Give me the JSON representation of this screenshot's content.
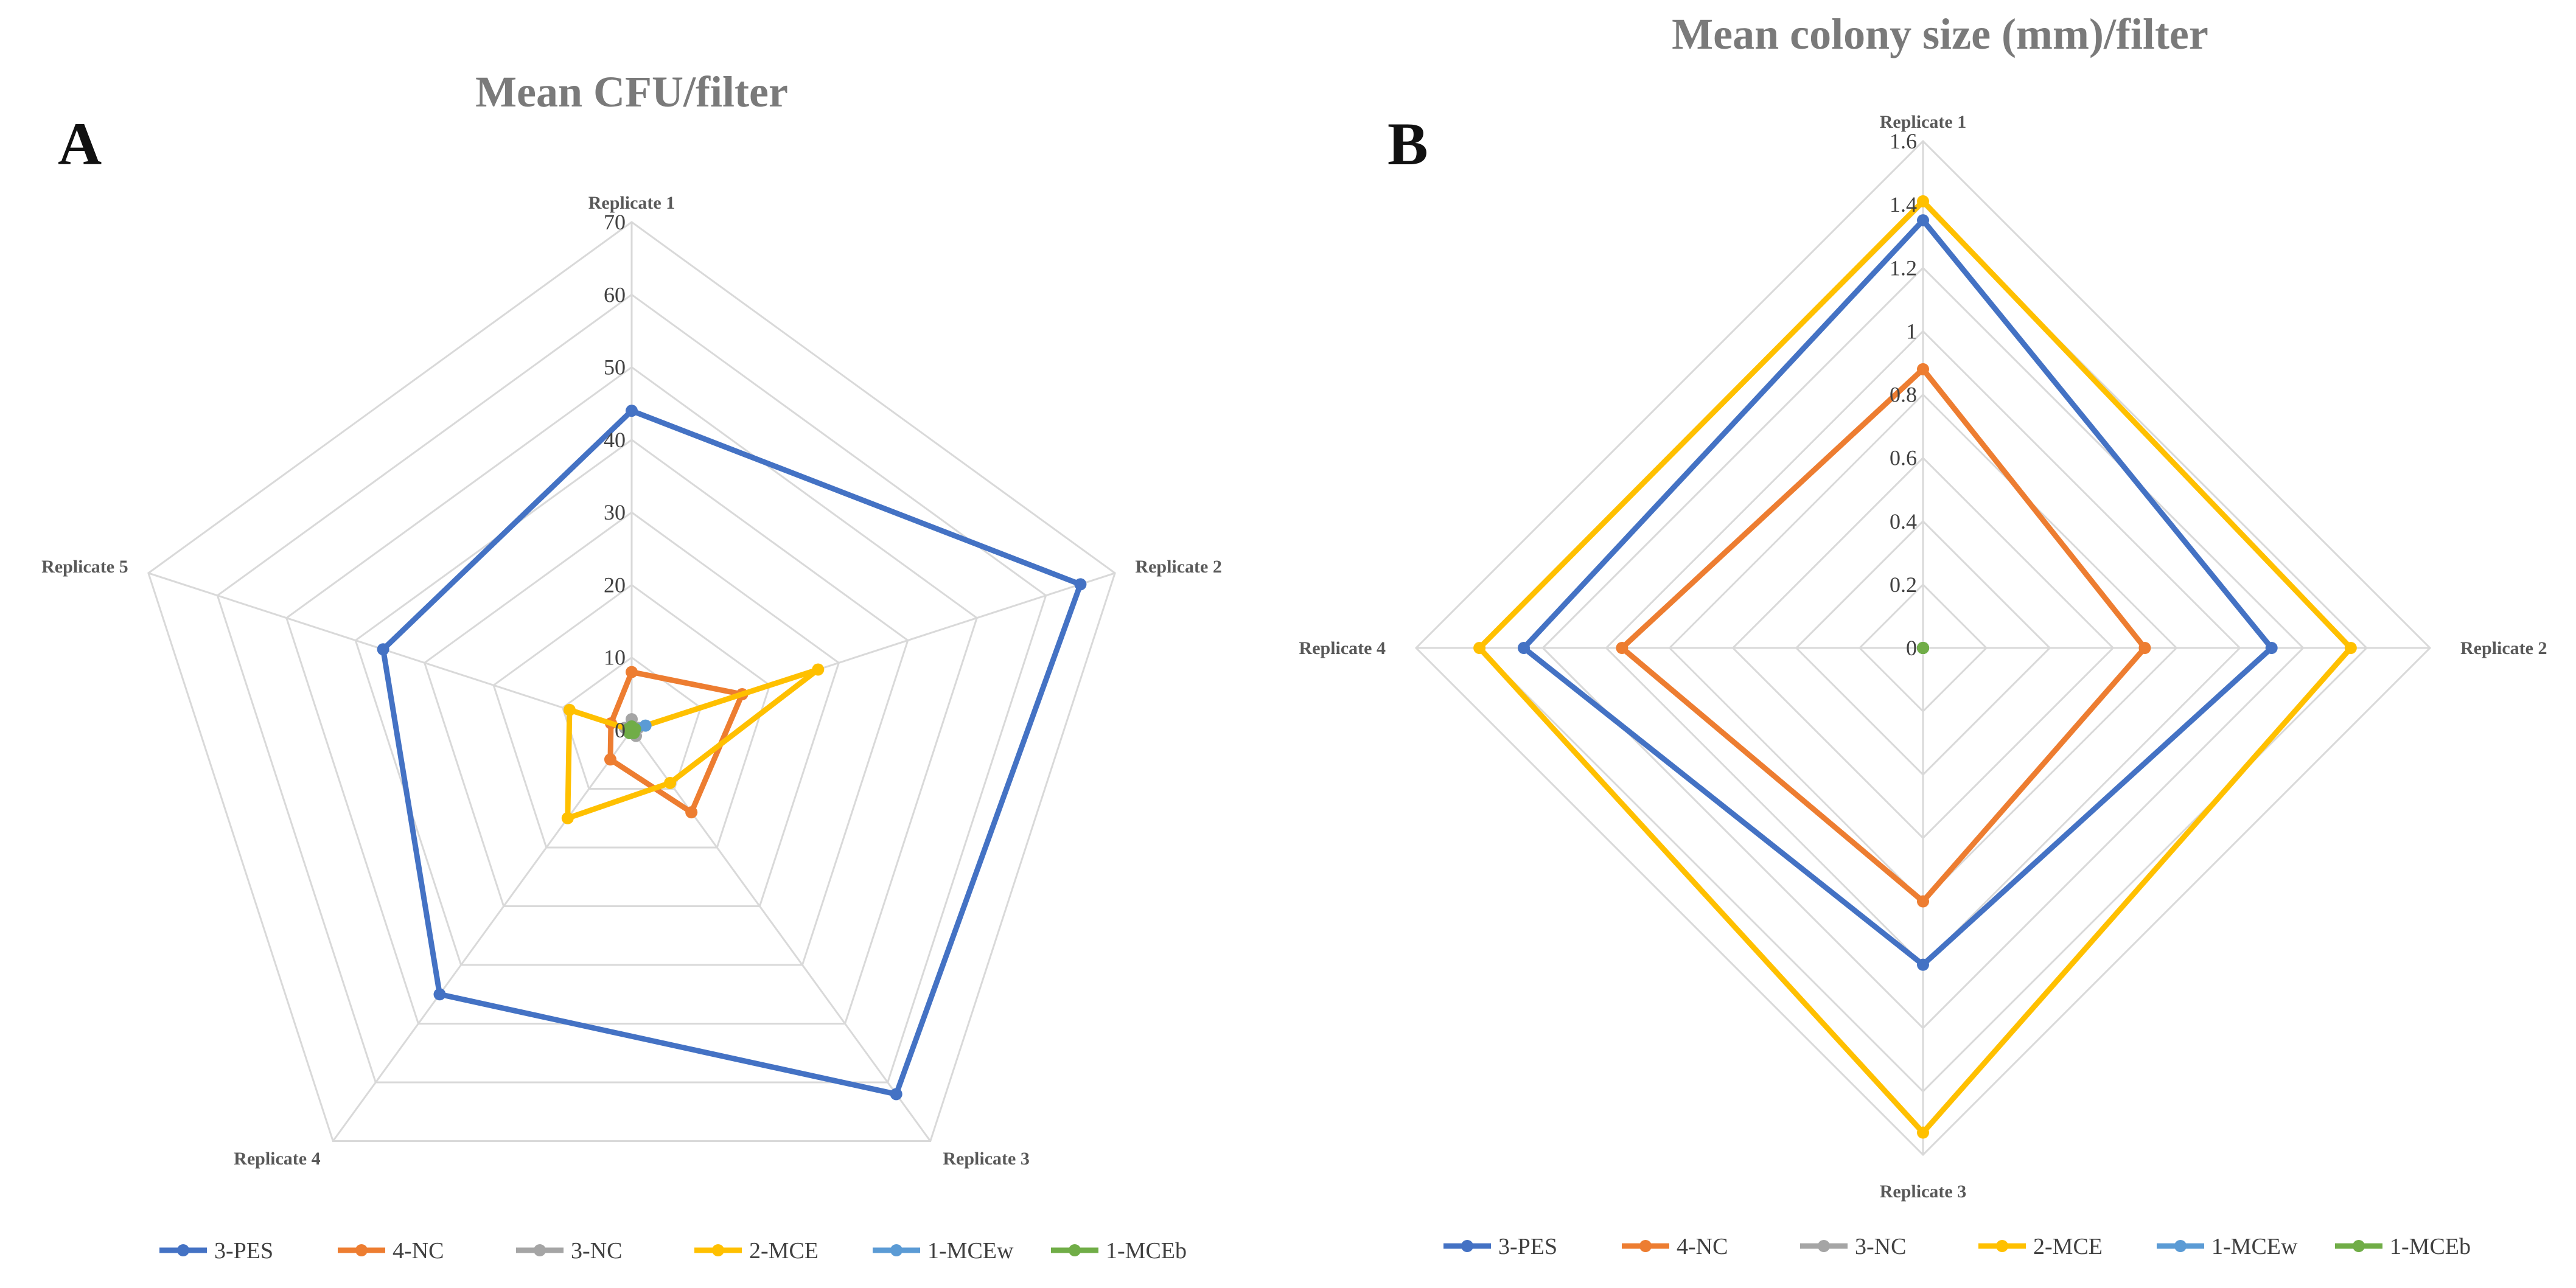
{
  "chart_data": [
    {
      "type": "radar",
      "panel": "A",
      "title": "Mean CFU/filter",
      "axes": [
        "Replicate 1",
        "Replicate 2",
        "Replicate 3",
        "Replicate 4",
        "Replicate 5"
      ],
      "rlim": [
        0,
        70
      ],
      "ticks": [
        0,
        10,
        20,
        30,
        40,
        50,
        60,
        70
      ],
      "tick_labels": [
        "0",
        "10",
        "20",
        "30",
        "40",
        "50",
        "60",
        "70"
      ],
      "grid": true,
      "series": [
        {
          "name": "3-PES",
          "color": "#4472C4",
          "values": [
            44,
            65,
            62,
            45,
            36
          ]
        },
        {
          "name": "4-NC",
          "color": "#ED7D31",
          "values": [
            8,
            16,
            14,
            5,
            3
          ]
        },
        {
          "name": "3-NC",
          "color": "#A5A5A5",
          "values": [
            1.5,
            1,
            1,
            0.5,
            1
          ]
        },
        {
          "name": "2-MCE",
          "color": "#FFC000",
          "values": [
            0,
            27,
            9,
            15,
            9
          ]
        },
        {
          "name": "1-MCEw",
          "color": "#5B9BD5",
          "values": [
            0.5,
            2,
            0.5,
            0.5,
            0.5
          ]
        },
        {
          "name": "1-MCEb",
          "color": "#70AD47",
          "values": [
            0.5,
            0.5,
            0.5,
            0.5,
            0.5
          ]
        }
      ],
      "legend": "bottom"
    },
    {
      "type": "radar",
      "panel": "B",
      "title": "Mean colony size (mm)/filter",
      "axes": [
        "Replicate 1",
        "Replicate 2",
        "Replicate 3",
        "Replicate 4"
      ],
      "rlim": [
        0,
        1.6
      ],
      "ticks": [
        0,
        0.2,
        0.4,
        0.6,
        0.8,
        1,
        1.2,
        1.4,
        1.6
      ],
      "tick_labels": [
        "0",
        "0.2",
        "0.4",
        "0.6",
        "0.8",
        "1",
        "1.2",
        "1.4",
        "1.6"
      ],
      "grid": true,
      "series": [
        {
          "name": "3-PES",
          "color": "#4472C4",
          "values": [
            1.35,
            1.1,
            1.0,
            1.26
          ]
        },
        {
          "name": "4-NC",
          "color": "#ED7D31",
          "values": [
            0.88,
            0.7,
            0.8,
            0.95
          ]
        },
        {
          "name": "3-NC",
          "color": "#A5A5A5",
          "values": [
            0,
            0,
            0,
            0
          ]
        },
        {
          "name": "2-MCE",
          "color": "#FFC000",
          "values": [
            1.41,
            1.35,
            1.53,
            1.4
          ]
        },
        {
          "name": "1-MCEw",
          "color": "#5B9BD5",
          "values": [
            0,
            0,
            0,
            0
          ]
        },
        {
          "name": "1-MCEb",
          "color": "#70AD47",
          "values": [
            0,
            0,
            0,
            0
          ]
        }
      ],
      "legend": "bottom"
    }
  ]
}
